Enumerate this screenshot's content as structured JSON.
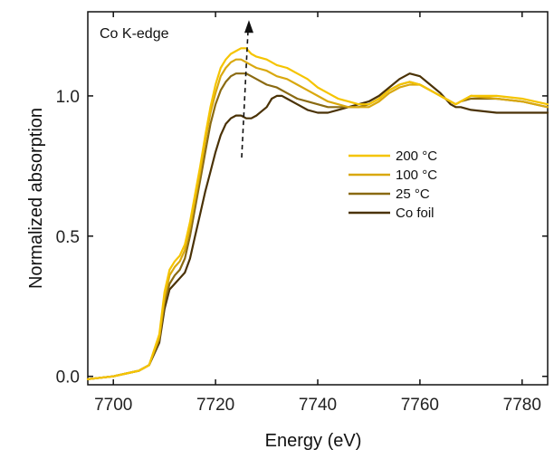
{
  "chart_data": {
    "type": "line",
    "title": "",
    "annotation": "Co K-edge",
    "xlabel": "Energy (eV)",
    "ylabel": "Normalized absorption",
    "xlim": [
      7695,
      7785
    ],
    "ylim": [
      -0.03,
      1.3
    ],
    "xticks": [
      7700,
      7720,
      7740,
      7760,
      7780
    ],
    "yticks": [
      0.0,
      0.5,
      1.0
    ],
    "xtick_labels": [
      "7700",
      "7720",
      "7740",
      "7760",
      "7780"
    ],
    "ytick_labels": [
      "0.0",
      "0.5",
      "1.0"
    ],
    "legend_position": "center-right",
    "arrow": {
      "x": 7726,
      "from_y": 0.78,
      "to_y": 1.27,
      "style": "dashed"
    },
    "series": [
      {
        "name": "200 °C",
        "color": "#F5C400",
        "x": [
          7695,
          7700,
          7705,
          7707,
          7709,
          7710,
          7711,
          7712,
          7713,
          7714,
          7715,
          7716,
          7717,
          7718,
          7719,
          7720,
          7721,
          7722,
          7723,
          7724,
          7725,
          7726,
          7727,
          7728,
          7730,
          7732,
          7734,
          7736,
          7738,
          7740,
          7742,
          7744,
          7746,
          7748,
          7750,
          7752,
          7754,
          7756,
          7758,
          7760,
          7762,
          7764,
          7765,
          7766,
          7767,
          7768,
          7770,
          7775,
          7780,
          7785
        ],
        "y": [
          -0.01,
          0.0,
          0.02,
          0.04,
          0.15,
          0.3,
          0.38,
          0.41,
          0.43,
          0.47,
          0.55,
          0.65,
          0.75,
          0.86,
          0.96,
          1.04,
          1.1,
          1.13,
          1.15,
          1.16,
          1.17,
          1.17,
          1.15,
          1.14,
          1.13,
          1.11,
          1.1,
          1.08,
          1.06,
          1.03,
          1.01,
          0.99,
          0.98,
          0.97,
          0.97,
          0.99,
          1.02,
          1.04,
          1.05,
          1.04,
          1.02,
          1.0,
          0.99,
          0.98,
          0.97,
          0.98,
          1.0,
          1.0,
          0.99,
          0.97
        ]
      },
      {
        "name": "100 °C",
        "color": "#D9A80E",
        "x": [
          7695,
          7700,
          7705,
          7707,
          7709,
          7710,
          7711,
          7712,
          7713,
          7714,
          7715,
          7716,
          7717,
          7718,
          7719,
          7720,
          7721,
          7722,
          7723,
          7724,
          7725,
          7726,
          7727,
          7728,
          7730,
          7732,
          7734,
          7736,
          7738,
          7740,
          7742,
          7744,
          7746,
          7748,
          7750,
          7752,
          7754,
          7756,
          7758,
          7760,
          7762,
          7764,
          7765,
          7766,
          7767,
          7768,
          7770,
          7775,
          7780,
          7785
        ],
        "y": [
          -0.01,
          0.0,
          0.02,
          0.04,
          0.14,
          0.28,
          0.36,
          0.39,
          0.41,
          0.45,
          0.53,
          0.63,
          0.73,
          0.84,
          0.94,
          1.01,
          1.07,
          1.1,
          1.12,
          1.13,
          1.13,
          1.12,
          1.11,
          1.1,
          1.09,
          1.07,
          1.06,
          1.04,
          1.02,
          1.0,
          0.98,
          0.97,
          0.96,
          0.96,
          0.96,
          0.98,
          1.01,
          1.03,
          1.04,
          1.04,
          1.02,
          1.0,
          0.99,
          0.98,
          0.97,
          0.98,
          1.0,
          0.99,
          0.98,
          0.96
        ]
      },
      {
        "name": "25 °C",
        "color": "#8A6A12",
        "x": [
          7695,
          7700,
          7705,
          7707,
          7709,
          7710,
          7711,
          7712,
          7713,
          7714,
          7715,
          7716,
          7717,
          7718,
          7719,
          7720,
          7721,
          7722,
          7723,
          7724,
          7725,
          7726,
          7727,
          7728,
          7730,
          7732,
          7734,
          7736,
          7738,
          7740,
          7742,
          7744,
          7746,
          7748,
          7750,
          7752,
          7754,
          7756,
          7758,
          7760,
          7762,
          7764,
          7765,
          7766,
          7767,
          7768,
          7770,
          7775,
          7780,
          7785
        ],
        "y": [
          -0.01,
          0.0,
          0.02,
          0.04,
          0.13,
          0.26,
          0.33,
          0.36,
          0.38,
          0.42,
          0.5,
          0.6,
          0.7,
          0.8,
          0.9,
          0.97,
          1.02,
          1.05,
          1.07,
          1.08,
          1.08,
          1.08,
          1.07,
          1.06,
          1.04,
          1.03,
          1.01,
          0.99,
          0.98,
          0.97,
          0.96,
          0.96,
          0.96,
          0.96,
          0.97,
          0.99,
          1.02,
          1.04,
          1.05,
          1.04,
          1.02,
          1.0,
          0.99,
          0.98,
          0.97,
          0.98,
          0.99,
          0.99,
          0.98,
          0.96
        ]
      },
      {
        "name": "Co foil",
        "color": "#4A3206",
        "x": [
          7695,
          7700,
          7705,
          7707,
          7709,
          7710,
          7711,
          7712,
          7713,
          7714,
          7715,
          7716,
          7717,
          7718,
          7719,
          7720,
          7721,
          7722,
          7723,
          7724,
          7725,
          7726,
          7727,
          7728,
          7730,
          7731,
          7732,
          7733,
          7734,
          7736,
          7738,
          7740,
          7742,
          7744,
          7746,
          7748,
          7750,
          7752,
          7754,
          7756,
          7758,
          7760,
          7762,
          7764,
          7765,
          7766,
          7767,
          7768,
          7770,
          7775,
          7780,
          7785
        ],
        "y": [
          -0.01,
          0.0,
          0.02,
          0.04,
          0.12,
          0.24,
          0.31,
          0.33,
          0.35,
          0.37,
          0.42,
          0.5,
          0.58,
          0.66,
          0.73,
          0.8,
          0.86,
          0.9,
          0.92,
          0.93,
          0.93,
          0.92,
          0.92,
          0.93,
          0.96,
          0.99,
          1.0,
          1.0,
          0.99,
          0.97,
          0.95,
          0.94,
          0.94,
          0.95,
          0.96,
          0.97,
          0.98,
          1.0,
          1.03,
          1.06,
          1.08,
          1.07,
          1.04,
          1.01,
          0.99,
          0.97,
          0.96,
          0.96,
          0.95,
          0.94,
          0.94,
          0.94
        ]
      }
    ]
  }
}
